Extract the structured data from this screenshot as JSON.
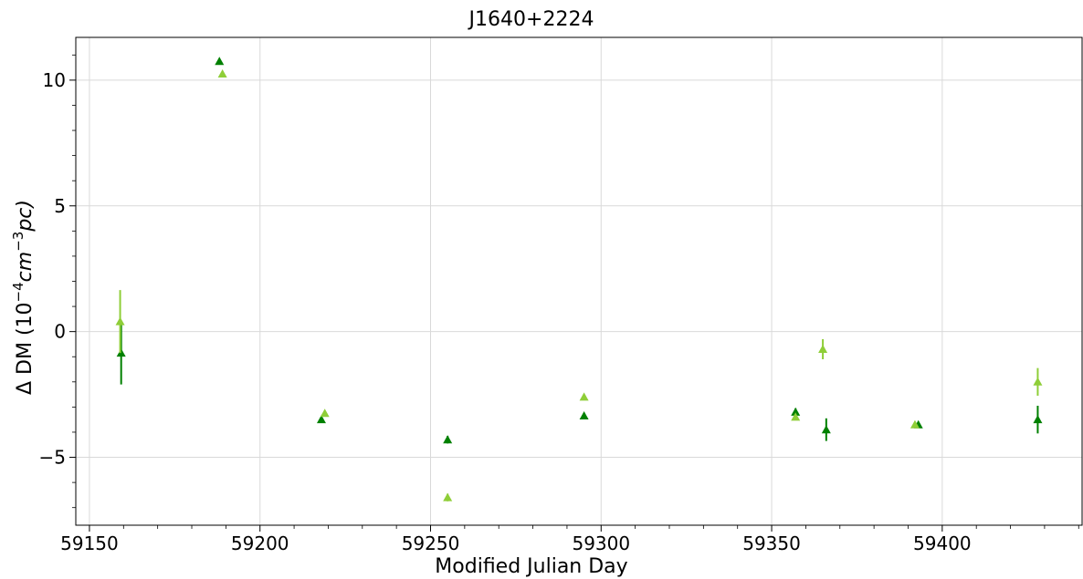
{
  "chart_data": {
    "type": "scatter",
    "title": "J1640+2224",
    "xlabel": "Modified Julian Day",
    "ylabel_prefix": "Δ DM (10",
    "ylabel_exp1": "−4",
    "ylabel_mid": "cm",
    "ylabel_exp2": "−3",
    "ylabel_suffix": "pc)",
    "xlim": [
      59146,
      59441
    ],
    "ylim": [
      -7.7,
      11.7
    ],
    "x_ticks": [
      59150,
      59200,
      59250,
      59300,
      59350,
      59400
    ],
    "x_tick_labels": [
      "59150",
      "59200",
      "59250",
      "59300",
      "59350",
      "59400"
    ],
    "y_ticks": [
      -5,
      0,
      5,
      10
    ],
    "y_tick_labels": [
      "−5",
      "0",
      "5",
      "10"
    ],
    "grid": true,
    "marker": "triangle-up",
    "series": [
      {
        "color": "#008000",
        "points": [
          {
            "x": 59159.3,
            "y": -0.85,
            "err": 1.25
          },
          {
            "x": 59188.1,
            "y": 10.75,
            "err": 0.05
          },
          {
            "x": 59218.0,
            "y": -3.5,
            "err": 0.1
          },
          {
            "x": 59255.0,
            "y": -4.3,
            "err": 0.15
          },
          {
            "x": 59295.0,
            "y": -3.35,
            "err": 0.05
          },
          {
            "x": 59357.0,
            "y": -3.2,
            "err": 0.15
          },
          {
            "x": 59366.0,
            "y": -3.9,
            "err": 0.45
          },
          {
            "x": 59393.0,
            "y": -3.7,
            "err": 0.05
          },
          {
            "x": 59428.0,
            "y": -3.5,
            "err": 0.55
          }
        ]
      },
      {
        "color": "#8fce38",
        "points": [
          {
            "x": 59159.0,
            "y": 0.4,
            "err": 1.25
          },
          {
            "x": 59189.0,
            "y": 10.25,
            "err": 0.05
          },
          {
            "x": 59219.0,
            "y": -3.25,
            "err": 0.1
          },
          {
            "x": 59255.0,
            "y": -6.6,
            "err": 0.15
          },
          {
            "x": 59295.0,
            "y": -2.6,
            "err": 0.05
          },
          {
            "x": 59357.0,
            "y": -3.4,
            "err": 0.1
          },
          {
            "x": 59365.0,
            "y": -0.7,
            "err": 0.4
          },
          {
            "x": 59392.0,
            "y": -3.7,
            "err": 0.05
          },
          {
            "x": 59428.0,
            "y": -2.0,
            "err": 0.55
          }
        ]
      }
    ]
  }
}
